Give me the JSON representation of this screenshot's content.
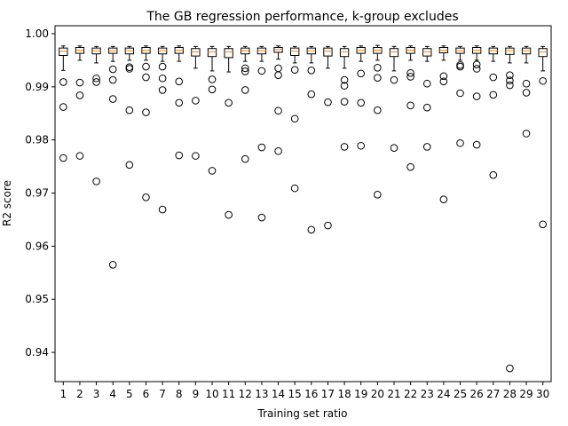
{
  "chart_data": {
    "type": "box",
    "title": "The GB regression performance, k-group excludes",
    "xlabel": "Training set ratio",
    "ylabel": "R2 score",
    "ylim": [
      0.9345,
      1.0015
    ],
    "yticks": [
      0.94,
      0.95,
      0.96,
      0.97,
      0.98,
      0.99,
      1.0
    ],
    "ytick_labels": [
      "0.94",
      "0.95",
      "0.96",
      "0.97",
      "0.98",
      "0.99",
      "1.00"
    ],
    "categories": [
      "1",
      "2",
      "3",
      "4",
      "5",
      "6",
      "7",
      "8",
      "9",
      "10",
      "11",
      "12",
      "13",
      "14",
      "15",
      "16",
      "17",
      "18",
      "19",
      "20",
      "21",
      "22",
      "23",
      "24",
      "25",
      "26",
      "27",
      "28",
      "29",
      "30"
    ],
    "grid": false,
    "colors": {
      "box": "#000000",
      "median": "#ff7f0e",
      "flier": "#000000",
      "axis": "#000000"
    },
    "boxes": [
      {
        "label": "1",
        "whislo": 0.9931,
        "q1": 0.9959,
        "med": 0.9967,
        "q3": 0.9973,
        "whishi": 0.9977,
        "fliers": [
          0.9909,
          0.9862,
          0.9766
        ]
      },
      {
        "label": "2",
        "whislo": 0.995,
        "q1": 0.9963,
        "med": 0.9969,
        "q3": 0.9974,
        "whishi": 0.9977,
        "fliers": [
          0.9908,
          0.9884,
          0.977
        ]
      },
      {
        "label": "3",
        "whislo": 0.9945,
        "q1": 0.9962,
        "med": 0.9968,
        "q3": 0.9973,
        "whishi": 0.9976,
        "fliers": [
          0.9916,
          0.9909,
          0.9722
        ]
      },
      {
        "label": "4",
        "whislo": 0.9948,
        "q1": 0.9963,
        "med": 0.9968,
        "q3": 0.9973,
        "whishi": 0.9976,
        "fliers": [
          0.9933,
          0.9913,
          0.9877,
          0.9565
        ]
      },
      {
        "label": "5",
        "whislo": 0.995,
        "q1": 0.9962,
        "med": 0.9968,
        "q3": 0.9973,
        "whishi": 0.9976,
        "fliers": [
          0.9937,
          0.9934,
          0.9856,
          0.9753
        ]
      },
      {
        "label": "6",
        "whislo": 0.995,
        "q1": 0.9963,
        "med": 0.9969,
        "q3": 0.9974,
        "whishi": 0.9977,
        "fliers": [
          0.9938,
          0.9918,
          0.9852,
          0.9692
        ]
      },
      {
        "label": "7",
        "whislo": 0.9948,
        "q1": 0.9962,
        "med": 0.9968,
        "q3": 0.9973,
        "whishi": 0.9976,
        "fliers": [
          0.9938,
          0.9916,
          0.9894,
          0.9669
        ]
      },
      {
        "label": "8",
        "whislo": 0.9948,
        "q1": 0.9963,
        "med": 0.9969,
        "q3": 0.9974,
        "whishi": 0.9977,
        "fliers": [
          0.991,
          0.987,
          0.9771
        ]
      },
      {
        "label": "9",
        "whislo": 0.9935,
        "q1": 0.9958,
        "med": 0.9966,
        "q3": 0.9972,
        "whishi": 0.9976,
        "fliers": [
          0.9874,
          0.977
        ]
      },
      {
        "label": "10",
        "whislo": 0.993,
        "q1": 0.9957,
        "med": 0.9966,
        "q3": 0.9972,
        "whishi": 0.9976,
        "fliers": [
          0.9914,
          0.9895,
          0.9742
        ]
      },
      {
        "label": "11",
        "whislo": 0.9928,
        "q1": 0.9955,
        "med": 0.9966,
        "q3": 0.9972,
        "whishi": 0.9976,
        "fliers": [
          0.987,
          0.9659
        ]
      },
      {
        "label": "12",
        "whislo": 0.9948,
        "q1": 0.9962,
        "med": 0.9968,
        "q3": 0.9973,
        "whishi": 0.9976,
        "fliers": [
          0.9935,
          0.9929,
          0.9894,
          0.9764
        ]
      },
      {
        "label": "13",
        "whislo": 0.9948,
        "q1": 0.9962,
        "med": 0.9968,
        "q3": 0.9973,
        "whishi": 0.9976,
        "fliers": [
          0.993,
          0.9786,
          0.9654
        ]
      },
      {
        "label": "14",
        "whislo": 0.9952,
        "q1": 0.9965,
        "med": 0.997,
        "q3": 0.9974,
        "whishi": 0.9977,
        "fliers": [
          0.9935,
          0.9922,
          0.9855,
          0.9779
        ]
      },
      {
        "label": "15",
        "whislo": 0.9945,
        "q1": 0.9959,
        "med": 0.9967,
        "q3": 0.9973,
        "whishi": 0.9976,
        "fliers": [
          0.9932,
          0.984,
          0.9709
        ]
      },
      {
        "label": "16",
        "whislo": 0.9945,
        "q1": 0.9962,
        "med": 0.9968,
        "q3": 0.9973,
        "whishi": 0.9976,
        "fliers": [
          0.9931,
          0.9886,
          0.9631
        ]
      },
      {
        "label": "17",
        "whislo": 0.9935,
        "q1": 0.9958,
        "med": 0.9967,
        "q3": 0.9973,
        "whishi": 0.9976,
        "fliers": [
          0.9871,
          0.9639
        ]
      },
      {
        "label": "18",
        "whislo": 0.9935,
        "q1": 0.9957,
        "med": 0.9966,
        "q3": 0.9972,
        "whishi": 0.9976,
        "fliers": [
          0.9913,
          0.9902,
          0.9872,
          0.9787
        ]
      },
      {
        "label": "19",
        "whislo": 0.9948,
        "q1": 0.9963,
        "med": 0.9969,
        "q3": 0.9974,
        "whishi": 0.9977,
        "fliers": [
          0.9925,
          0.987,
          0.9789
        ]
      },
      {
        "label": "20",
        "whislo": 0.995,
        "q1": 0.9963,
        "med": 0.9969,
        "q3": 0.9974,
        "whishi": 0.9978,
        "fliers": [
          0.9936,
          0.9917,
          0.9856,
          0.9697
        ]
      },
      {
        "label": "21",
        "whislo": 0.993,
        "q1": 0.9957,
        "med": 0.9966,
        "q3": 0.9972,
        "whishi": 0.9976,
        "fliers": [
          0.9913,
          0.9785
        ]
      },
      {
        "label": "22",
        "whislo": 0.995,
        "q1": 0.9963,
        "med": 0.9969,
        "q3": 0.9974,
        "whishi": 0.9977,
        "fliers": [
          0.9926,
          0.9919,
          0.9865,
          0.9749
        ]
      },
      {
        "label": "23",
        "whislo": 0.9948,
        "q1": 0.9958,
        "med": 0.9966,
        "q3": 0.9972,
        "whishi": 0.9976,
        "fliers": [
          0.9906,
          0.9861,
          0.9787
        ]
      },
      {
        "label": "24",
        "whislo": 0.995,
        "q1": 0.9964,
        "med": 0.9969,
        "q3": 0.9974,
        "whishi": 0.9977,
        "fliers": [
          0.992,
          0.991,
          0.9688
        ]
      },
      {
        "label": "25",
        "whislo": 0.995,
        "q1": 0.9963,
        "med": 0.9968,
        "q3": 0.9973,
        "whishi": 0.9976,
        "fliers": [
          0.9941,
          0.9938,
          0.9888,
          0.9794
        ]
      },
      {
        "label": "26",
        "whislo": 0.995,
        "q1": 0.9963,
        "med": 0.9969,
        "q3": 0.9974,
        "whishi": 0.9977,
        "fliers": [
          0.9942,
          0.9934,
          0.9882,
          0.9791
        ]
      },
      {
        "label": "27",
        "whislo": 0.9948,
        "q1": 0.9962,
        "med": 0.9968,
        "q3": 0.9973,
        "whishi": 0.9976,
        "fliers": [
          0.9918,
          0.9885,
          0.9734
        ]
      },
      {
        "label": "28",
        "whislo": 0.9945,
        "q1": 0.9961,
        "med": 0.9968,
        "q3": 0.9973,
        "whishi": 0.9976,
        "fliers": [
          0.9922,
          0.9912,
          0.9903,
          0.937
        ]
      },
      {
        "label": "29",
        "whislo": 0.9945,
        "q1": 0.9962,
        "med": 0.9968,
        "q3": 0.9973,
        "whishi": 0.9976,
        "fliers": [
          0.9906,
          0.9889,
          0.9812
        ]
      },
      {
        "label": "30",
        "whislo": 0.993,
        "q1": 0.9957,
        "med": 0.9966,
        "q3": 0.9972,
        "whishi": 0.9976,
        "fliers": [
          0.9911,
          0.9641
        ]
      }
    ]
  }
}
